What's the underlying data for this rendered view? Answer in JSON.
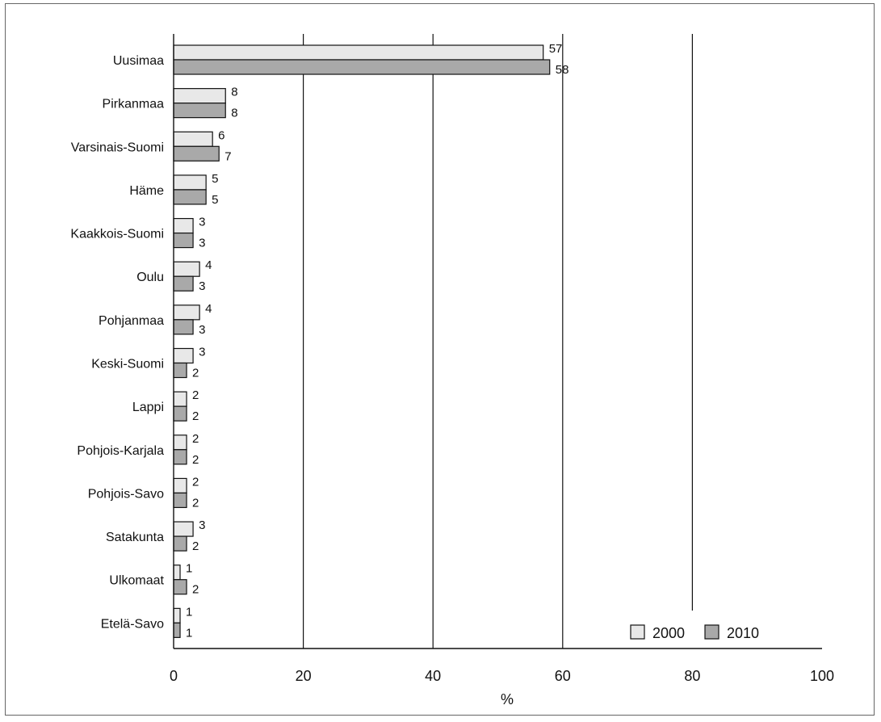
{
  "chart_data": {
    "type": "bar",
    "orientation": "horizontal",
    "categories": [
      "Uusimaa",
      "Pirkanmaa",
      "Varsinais-Suomi",
      "Häme",
      "Kaakkois-Suomi",
      "Oulu",
      "Pohjanmaa",
      "Keski-Suomi",
      "Lappi",
      "Pohjois-Karjala",
      "Pohjois-Savo",
      "Satakunta",
      "Ulkomaat",
      "Etelä-Savo"
    ],
    "series": [
      {
        "name": "2000",
        "values": [
          57,
          8,
          6,
          5,
          3,
          4,
          4,
          3,
          2,
          2,
          2,
          3,
          1,
          1
        ],
        "color": "#e8e8e8"
      },
      {
        "name": "2010",
        "values": [
          58,
          8,
          7,
          5,
          3,
          3,
          3,
          2,
          2,
          2,
          2,
          2,
          2,
          1
        ],
        "color": "#a9a9a9"
      }
    ],
    "xlabel": "%",
    "xlim": [
      0,
      100
    ],
    "xticks": [
      "0",
      "20",
      "40",
      "60",
      "80",
      "100"
    ],
    "grid": "vertical",
    "legend_position": "bottom-right"
  }
}
